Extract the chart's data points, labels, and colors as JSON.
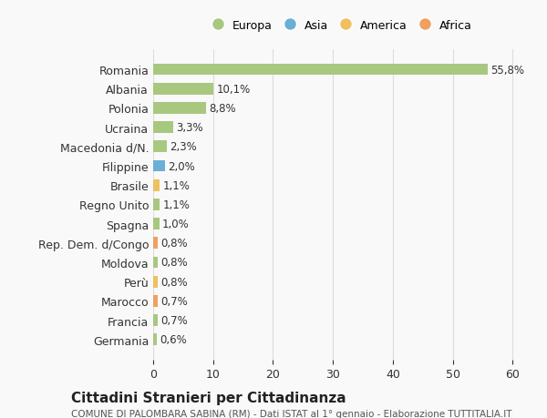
{
  "countries": [
    "Romania",
    "Albania",
    "Polonia",
    "Ucraina",
    "Macedonia d/N.",
    "Filippine",
    "Brasile",
    "Regno Unito",
    "Spagna",
    "Rep. Dem. d/Congo",
    "Moldova",
    "Perù",
    "Marocco",
    "Francia",
    "Germania"
  ],
  "values": [
    55.8,
    10.1,
    8.8,
    3.3,
    2.3,
    2.0,
    1.1,
    1.1,
    1.0,
    0.8,
    0.8,
    0.8,
    0.7,
    0.7,
    0.6
  ],
  "labels": [
    "55,8%",
    "10,1%",
    "8,8%",
    "3,3%",
    "2,3%",
    "2,0%",
    "1,1%",
    "1,1%",
    "1,0%",
    "0,8%",
    "0,8%",
    "0,8%",
    "0,7%",
    "0,7%",
    "0,6%"
  ],
  "colors": [
    "#a8c880",
    "#a8c880",
    "#a8c880",
    "#a8c880",
    "#a8c880",
    "#6baed6",
    "#f0c060",
    "#a8c880",
    "#a8c880",
    "#f0a060",
    "#a8c880",
    "#f0c060",
    "#f0a060",
    "#a8c880",
    "#a8c880"
  ],
  "legend": [
    {
      "label": "Europa",
      "color": "#a8c880"
    },
    {
      "label": "Asia",
      "color": "#6baed6"
    },
    {
      "label": "America",
      "color": "#f0c060"
    },
    {
      "label": "Africa",
      "color": "#f0a060"
    }
  ],
  "title": "Cittadini Stranieri per Cittadinanza",
  "subtitle": "COMUNE DI PALOMBARA SABINA (RM) - Dati ISTAT al 1° gennaio - Elaborazione TUTTITALIA.IT",
  "xlim": [
    0,
    63
  ],
  "background_color": "#f9f9f9",
  "grid_color": "#dddddd"
}
